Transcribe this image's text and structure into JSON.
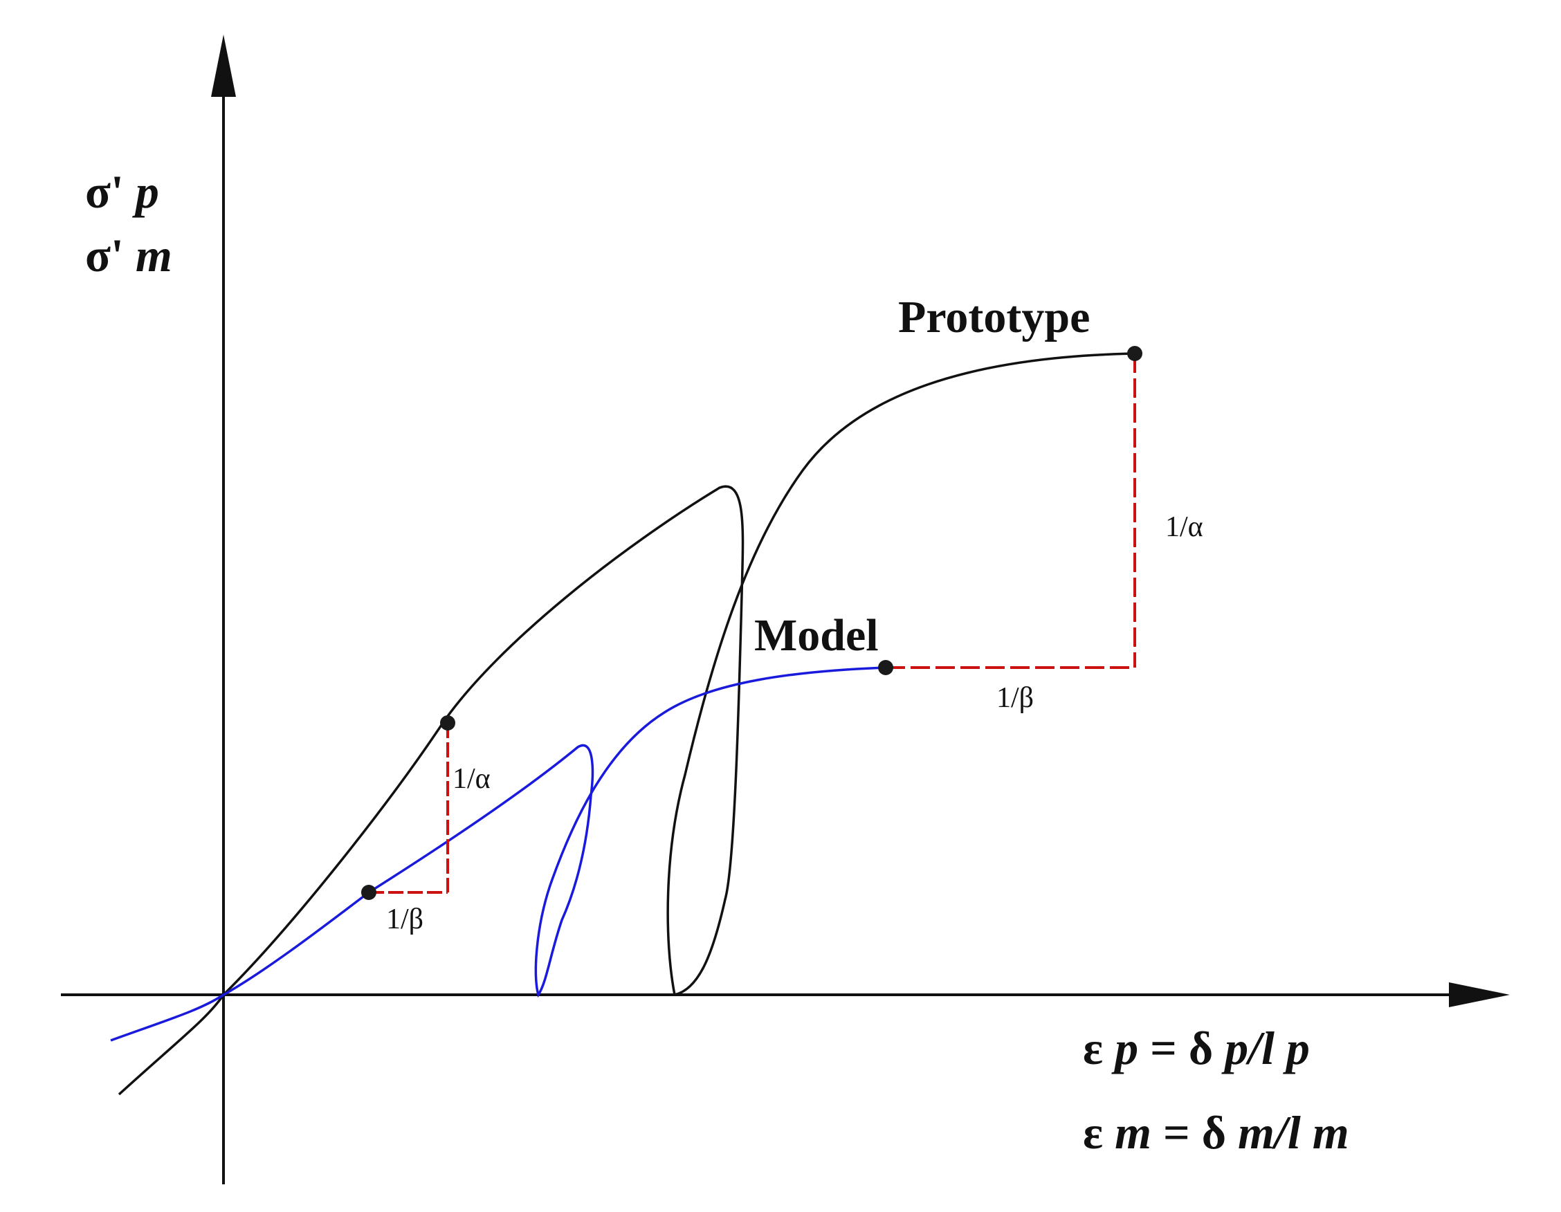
{
  "y_axis_label": {
    "line1": {
      "symbol": "σ'",
      "subscript": "p"
    },
    "line2": {
      "symbol": "σ'",
      "subscript": "m"
    }
  },
  "x_axis_label": {
    "line1": {
      "eps": "ε",
      "eps_sub": "p",
      "eq": "=",
      "delta": "δ",
      "delta_sub": "p",
      "slash": "/",
      "l": "l",
      "l_sub": "p"
    },
    "line2": {
      "eps": "ε",
      "eps_sub": "m",
      "eq": "=",
      "delta": "δ",
      "delta_sub": "m",
      "slash": "/",
      "l": "l",
      "l_sub": "m"
    }
  },
  "curves": {
    "prototype": {
      "label": "Prototype",
      "color": "#111111"
    },
    "model": {
      "label": "Model",
      "color": "#1a1adc"
    }
  },
  "ratio_labels": {
    "alpha_small": "1/α",
    "beta_small": "1/β",
    "alpha_large": "1/α",
    "beta_large": "1/β"
  },
  "colors": {
    "axis": "#111111",
    "dashed": "#cc1111",
    "marker": "#1a1a1a"
  }
}
